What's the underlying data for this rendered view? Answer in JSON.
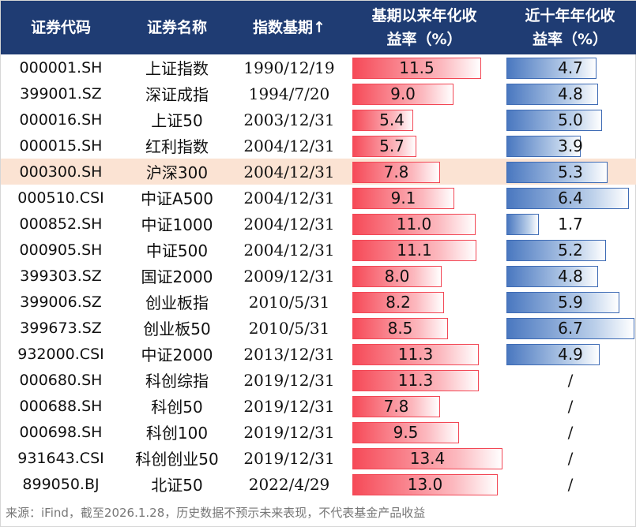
{
  "header": {
    "col_code": "证券代码",
    "col_name": "证券名称",
    "col_base": "指数基期↑",
    "col_return_line1": "基期以来年化收",
    "col_return_line2": "益率（%）",
    "col_ten_line1": "近十年年化收",
    "col_ten_line2": "益率（%）"
  },
  "colors": {
    "header_bg": "#1f3c73",
    "red_bar": "#f64a58",
    "blue_bar": "#4a78c0",
    "highlight_row": "#fbe3d3"
  },
  "chart_data": {
    "type": "table",
    "highlight_code": "000300.SH",
    "rows": [
      {
        "code": "000001.SH",
        "name": "上证指数",
        "base": "1990/12/19",
        "since": "11.5",
        "ten": "4.7"
      },
      {
        "code": "399001.SZ",
        "name": "深证成指",
        "base": "1994/7/20",
        "since": "9.0",
        "ten": "4.8"
      },
      {
        "code": "000016.SH",
        "name": "上证50",
        "base": "2003/12/31",
        "since": "5.4",
        "ten": "5.0"
      },
      {
        "code": "000015.SH",
        "name": "红利指数",
        "base": "2004/12/31",
        "since": "5.7",
        "ten": "3.9"
      },
      {
        "code": "000300.SH",
        "name": "沪深300",
        "base": "2004/12/31",
        "since": "7.8",
        "ten": "5.3"
      },
      {
        "code": "000510.CSI",
        "name": "中证A500",
        "base": "2004/12/31",
        "since": "9.1",
        "ten": "6.4"
      },
      {
        "code": "000852.SH",
        "name": "中证1000",
        "base": "2004/12/31",
        "since": "11.0",
        "ten": "1.7"
      },
      {
        "code": "000905.SH",
        "name": "中证500",
        "base": "2004/12/31",
        "since": "11.1",
        "ten": "5.2"
      },
      {
        "code": "399303.SZ",
        "name": "国证2000",
        "base": "2009/12/31",
        "since": "8.0",
        "ten": "4.8"
      },
      {
        "code": "399006.SZ",
        "name": "创业板指",
        "base": "2010/5/31",
        "since": "8.2",
        "ten": "5.9"
      },
      {
        "code": "399673.SZ",
        "name": "创业板50",
        "base": "2010/5/31",
        "since": "8.5",
        "ten": "6.7"
      },
      {
        "code": "932000.CSI",
        "name": "中证2000",
        "base": "2013/12/31",
        "since": "11.3",
        "ten": "4.9"
      },
      {
        "code": "000680.SH",
        "name": "科创综指",
        "base": "2019/12/31",
        "since": "11.3",
        "ten": "/"
      },
      {
        "code": "000688.SH",
        "name": "科创50",
        "base": "2019/12/31",
        "since": "7.8",
        "ten": "/"
      },
      {
        "code": "000698.SH",
        "name": "科创100",
        "base": "2019/12/31",
        "since": "9.5",
        "ten": "/"
      },
      {
        "code": "931643.CSI",
        "name": "科创创业50",
        "base": "2019/12/31",
        "since": "13.4",
        "ten": "/"
      },
      {
        "code": "899050.BJ",
        "name": "北证50",
        "base": "2022/4/29",
        "since": "13.0",
        "ten": "/"
      }
    ]
  },
  "footer": {
    "source": "来源：iFind，截至2026.1.28，历史数据不预示未来表现，不代表基金产品收益"
  }
}
